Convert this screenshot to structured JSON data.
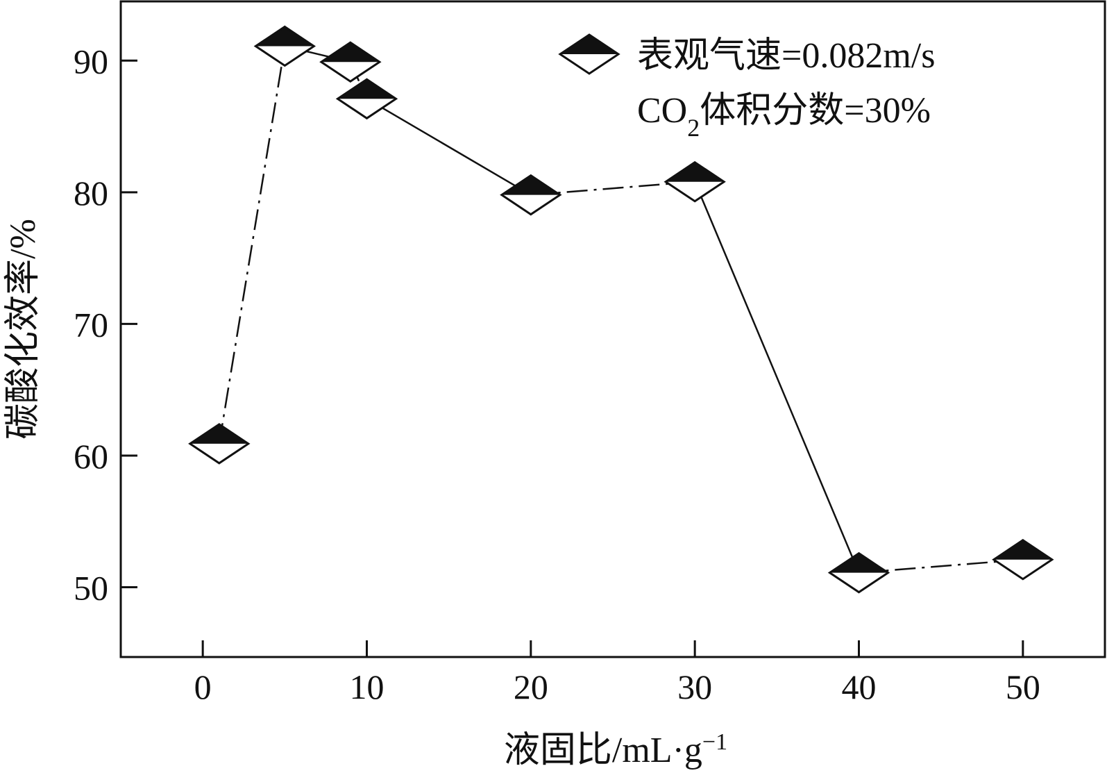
{
  "chart_data": {
    "type": "line",
    "xlabel": "液固比/mL·g",
    "xlabel_sup": "−1",
    "ylabel": "碳酸化效率/%",
    "xlim": [
      -5,
      55
    ],
    "ylim": [
      44.7,
      94.5
    ],
    "xticks": [
      0,
      10,
      20,
      30,
      40,
      50
    ],
    "yticks": [
      50,
      60,
      70,
      80,
      90
    ],
    "x_tick_labels": [
      "0",
      "10",
      "20",
      "30",
      "40",
      "50"
    ],
    "y_tick_labels": [
      "50",
      "60",
      "70",
      "80",
      "90"
    ],
    "grid": false,
    "legend_position": "top-right",
    "legend": {
      "line1": "表观气速=0.082m/s",
      "line2_prefix": "CO",
      "line2_sub": "2",
      "line2_suffix": "体积分数=30%"
    },
    "series": [
      {
        "marker": "half-filled-diamond",
        "color": "#111111",
        "x": [
          1,
          5,
          9,
          10,
          20,
          30,
          40,
          50
        ],
        "y": [
          60.9,
          91.1,
          89.9,
          87.1,
          79.8,
          80.8,
          51.1,
          52.1
        ]
      }
    ]
  }
}
